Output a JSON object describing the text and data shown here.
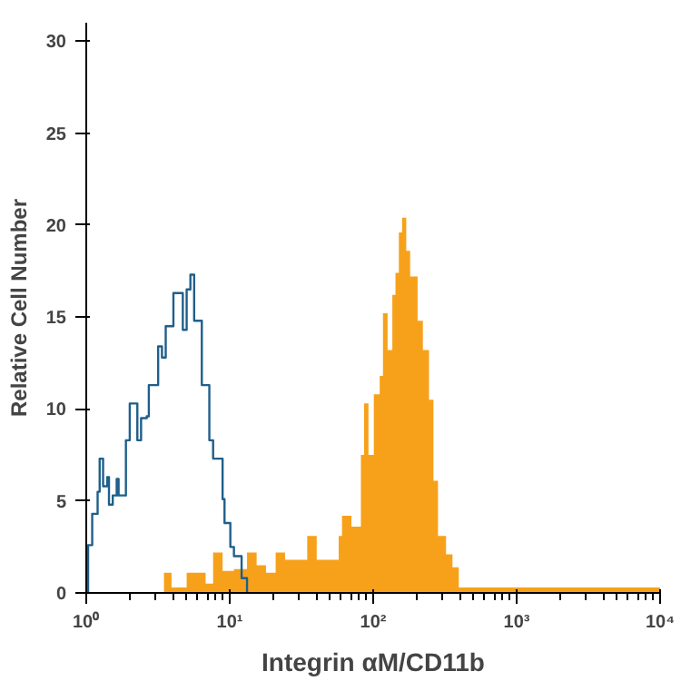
{
  "chart_data": {
    "type": "step",
    "xlabel": "Integrin αM/CD11b",
    "ylabel": "Relative Cell Number",
    "log": "x",
    "xlim": [
      1,
      10000
    ],
    "ylim": [
      0,
      31
    ],
    "xticks": [
      {
        "value": 1,
        "label": "10⁰"
      },
      {
        "value": 10,
        "label": "10¹"
      },
      {
        "value": 100,
        "label": "10²"
      },
      {
        "value": 1000,
        "label": "10³"
      },
      {
        "value": 10000,
        "label": "10⁴"
      }
    ],
    "yticks": [
      0,
      5,
      10,
      15,
      20,
      25,
      30
    ],
    "grid": false,
    "series": [
      {
        "color": "#1f5f8b",
        "x": [
          1,
          1.03,
          1.1,
          1.2,
          1.24,
          1.31,
          1.4,
          1.44,
          1.53,
          1.63,
          1.68,
          1.89,
          2.01,
          2.27,
          2.41,
          2.64,
          2.73,
          3.17,
          3.37,
          3.58,
          4.05,
          4.71,
          5.01,
          5.32,
          5.65,
          6.39,
          7.21,
          7.66,
          8.92,
          9.2,
          10.1,
          10.7,
          12.1,
          13.2
        ],
        "values": [
          0,
          2.6,
          4.3,
          5.5,
          7.3,
          5.8,
          6.3,
          4.8,
          5.3,
          6.2,
          5.3,
          8.3,
          10.3,
          8.3,
          9.5,
          9.6,
          11.3,
          13.4,
          12.8,
          14.5,
          16.3,
          14.3,
          16.5,
          17.3,
          14.8,
          11.3,
          8.3,
          7.3,
          5.1,
          3.8,
          2.5,
          2.0,
          0.8,
          0
        ]
      },
      {
        "type": "area",
        "color": "#f7a11a",
        "x": [
          3.48,
          3.93,
          5.01,
          6.79,
          7.66,
          8.92,
          10.7,
          13.2,
          15.4,
          17.9,
          20.9,
          24.3,
          34.7,
          40.4,
          57.5,
          60.6,
          70.5,
          82.1,
          86.4,
          92.7,
          101,
          111,
          117,
          126,
          136,
          143,
          151,
          159,
          170,
          181,
          204,
          222,
          245,
          263,
          283,
          322,
          357,
          395,
          10000
        ],
        "values": [
          1.1,
          0.3,
          1.1,
          0.5,
          2.2,
          1.2,
          1.3,
          2.2,
          1.5,
          1.1,
          2.2,
          1.8,
          3.1,
          1.8,
          3.1,
          4.2,
          3.6,
          7.5,
          10.3,
          7.5,
          10.8,
          11.8,
          15.2,
          13.2,
          16.2,
          17.4,
          19.6,
          20.4,
          18.6,
          17.2,
          14.8,
          13.2,
          10.5,
          6.1,
          3.1,
          2.1,
          1.4,
          0.3,
          0.3
        ]
      }
    ]
  }
}
